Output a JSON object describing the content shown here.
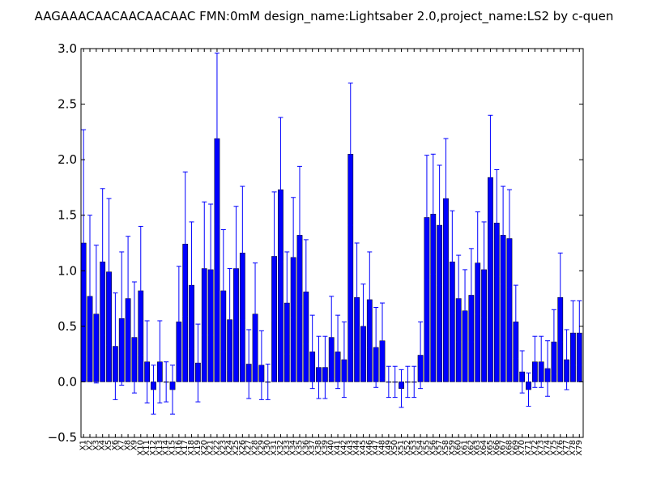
{
  "chart_data": {
    "type": "bar",
    "title": "AAGAAACAACAACAACAAC  FMN:0mM  design_name:Lightsaber 2.0,project_name:LS2 by c-quen",
    "xlabel": "",
    "ylabel": "",
    "ylim": [
      -0.5,
      3.0
    ],
    "yticks": [
      -0.5,
      0.0,
      0.5,
      1.0,
      1.5,
      2.0,
      2.5,
      3.0
    ],
    "ytick_labels": [
      "−0.5",
      "0.0",
      "0.5",
      "1.0",
      "1.5",
      "2.0",
      "2.5",
      "3.0"
    ],
    "grid": false,
    "legend": "none",
    "bar_color": "#0000ff",
    "errorbar_color": "#0000ff",
    "categories": [
      "X1",
      "X2",
      "X3",
      "X4",
      "X5",
      "X6",
      "X7",
      "X8",
      "X9",
      "X10",
      "X11",
      "X12",
      "X13",
      "X14",
      "X15",
      "X16",
      "X17",
      "X18",
      "X19",
      "X20",
      "X21",
      "X22",
      "X23",
      "X24",
      "X25",
      "X26",
      "X27",
      "X28",
      "X29",
      "X30",
      "X31",
      "X32",
      "X33",
      "X34",
      "X35",
      "X36",
      "X37",
      "X38",
      "X39",
      "X40",
      "X41",
      "X42",
      "X43",
      "X44",
      "X45",
      "X46",
      "X47",
      "X48",
      "X49",
      "X50",
      "X51",
      "X52",
      "X53",
      "X54",
      "X55",
      "X56",
      "X57",
      "X58",
      "X59",
      "X60",
      "X61",
      "X62",
      "X63",
      "X64",
      "X65",
      "X66",
      "X67",
      "X68",
      "X69",
      "X70",
      "X71",
      "X72",
      "X73",
      "X74",
      "X75",
      "X76",
      "X77",
      "X78",
      "X79"
    ],
    "values": [
      1.25,
      0.77,
      0.61,
      1.08,
      0.99,
      0.32,
      0.57,
      0.75,
      0.4,
      0.82,
      0.18,
      -0.07,
      0.18,
      0.0,
      -0.07,
      0.54,
      1.24,
      0.87,
      0.17,
      1.02,
      1.01,
      2.19,
      0.82,
      0.56,
      1.02,
      1.16,
      0.16,
      0.61,
      0.15,
      0.0,
      1.13,
      1.73,
      0.71,
      1.12,
      1.32,
      0.81,
      0.27,
      0.13,
      0.13,
      0.4,
      0.27,
      0.2,
      2.05,
      0.76,
      0.5,
      0.74,
      0.31,
      0.37,
      0.0,
      0.0,
      -0.06,
      0.0,
      0.0,
      0.24,
      1.48,
      1.51,
      1.41,
      1.65,
      1.08,
      0.75,
      0.64,
      0.78,
      1.07,
      1.01,
      1.84,
      1.43,
      1.32,
      1.29,
      0.54,
      0.09,
      -0.07,
      0.18,
      0.18,
      0.12,
      0.36,
      0.76,
      0.2,
      0.44,
      0.44
    ],
    "errors": [
      1.02,
      0.73,
      0.62,
      0.66,
      0.66,
      0.48,
      0.6,
      0.56,
      0.5,
      0.58,
      0.37,
      0.22,
      0.37,
      0.18,
      0.22,
      0.5,
      0.65,
      0.57,
      0.35,
      0.6,
      0.59,
      0.77,
      0.55,
      0.46,
      0.56,
      0.6,
      0.31,
      0.46,
      0.31,
      0.16,
      0.58,
      0.65,
      0.46,
      0.54,
      0.62,
      0.47,
      0.33,
      0.28,
      0.28,
      0.37,
      0.33,
      0.34,
      0.64,
      0.49,
      0.38,
      0.43,
      0.36,
      0.34,
      0.14,
      0.14,
      0.17,
      0.14,
      0.14,
      0.3,
      0.56,
      0.54,
      0.54,
      0.54,
      0.46,
      0.39,
      0.37,
      0.42,
      0.46,
      0.43,
      0.56,
      0.48,
      0.44,
      0.44,
      0.33,
      0.19,
      0.15,
      0.23,
      0.23,
      0.25,
      0.29,
      0.4,
      0.27,
      0.29,
      0.29
    ]
  }
}
